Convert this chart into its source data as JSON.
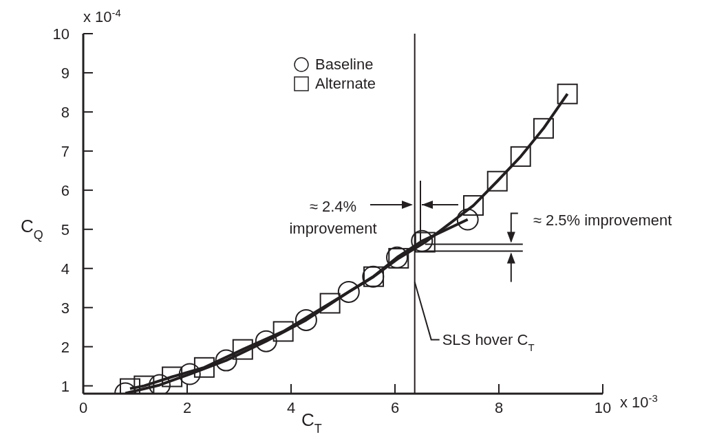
{
  "chart_data": {
    "type": "line",
    "xlabel": "C$_{T}$",
    "ylabel": "C$_{Q}$",
    "xlim": [
      0,
      10
    ],
    "xticks": [
      0,
      2,
      4,
      6,
      8,
      10
    ],
    "ylim": [
      0.8,
      10
    ],
    "yticks": [
      1,
      2,
      3,
      4,
      5,
      6,
      7,
      8,
      9,
      10
    ],
    "grid": false,
    "legend": "top",
    "line_style": "solid",
    "series": [
      {
        "name": "Baseline",
        "color": "#231f20",
        "marker": "circle",
        "x": [
          0.81,
          1.47,
          2.05,
          2.75,
          3.52,
          4.29,
          5.11,
          5.58,
          6.04,
          6.52,
          7.4
        ],
        "values": [
          0.81,
          1.02,
          1.3,
          1.65,
          2.14,
          2.68,
          3.4,
          3.79,
          4.28,
          4.7,
          5.25
        ]
      },
      {
        "name": "Alternate",
        "color": "#231f20",
        "marker": "square",
        "x": [
          0.9,
          1.17,
          1.71,
          2.33,
          3.07,
          3.85,
          4.75,
          5.59,
          6.07,
          6.58,
          7.51,
          7.97,
          8.42,
          8.86,
          9.32
        ],
        "values": [
          0.93,
          1.0,
          1.23,
          1.47,
          1.93,
          2.39,
          3.11,
          3.79,
          4.26,
          4.67,
          5.61,
          6.23,
          6.86,
          7.58,
          8.46
        ]
      }
    ],
    "ref_lines": [
      {
        "axis": "x",
        "value": 6.38,
        "label": "SLS hover C$_{T}$",
        "color": "#231f20"
      }
    ],
    "annotations": [
      "x 10$^{-4}$",
      "≈ 2.4% improvement",
      {
        "text": "≈ 2.5% improvement",
        "x": 6.58,
        "y": 4.55
      },
      "x 10$^{-3}$"
    ]
  }
}
